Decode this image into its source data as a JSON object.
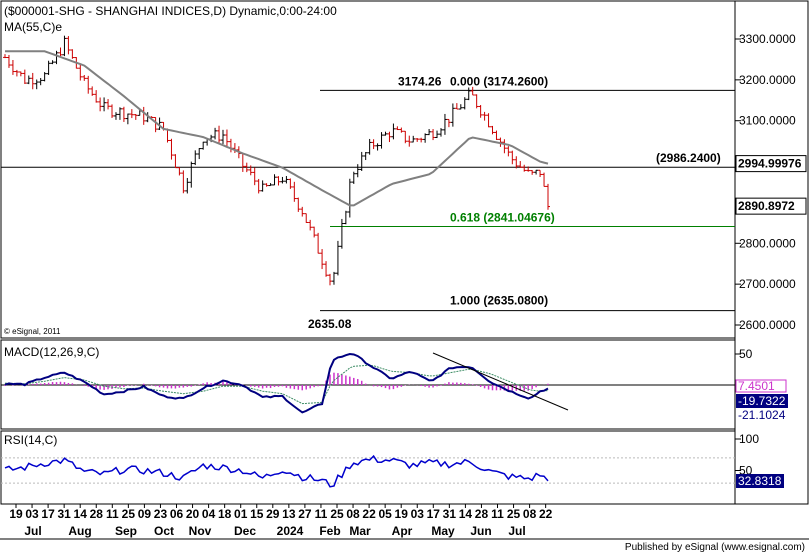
{
  "colors": {
    "up_bar": "#000000",
    "down_bar": "#cc0000",
    "ma_line": "#808080",
    "support_line": "#008000",
    "macd_line": "#000080",
    "signal_line": "#3c8c64",
    "histogram": "#cc33cc",
    "rsi_line": "#0000cc",
    "last_price_badge": "#000080",
    "price_tag_bg": "#ffffff"
  },
  "chart_data": [
    {
      "type": "line",
      "subtype": "candlestick-ohlc",
      "panel": "price",
      "title": "($000001-SHG - SHANGHAI INDICES,D) Dynamic,0:00-24:00",
      "indicator_label": "MA(55,C)e",
      "copyright": "© eSignal, 2011",
      "y_axis": {
        "ticks": [
          "3300.0000",
          "3200.0000",
          "3100.0000",
          "3000.0000",
          "2900.0000",
          "2800.0000",
          "2700.0000",
          "2600.0000"
        ],
        "range": [
          2560,
          3390
        ]
      },
      "x_axis": {
        "day_labels": [
          "19",
          "03",
          "17",
          "31",
          "14",
          "28",
          "11",
          "25",
          "09",
          "23",
          "06",
          "20",
          "04",
          "18",
          "01",
          "15",
          "29",
          "13",
          "27",
          "11",
          "25",
          "08",
          "22",
          "05",
          "19",
          "03",
          "17",
          "31",
          "14",
          "28",
          "11",
          "25",
          "08",
          "22"
        ],
        "month_labels": [
          "Jul",
          "Aug",
          "Sep",
          "Oct",
          "Nov",
          "Dec",
          "2024",
          "Feb",
          "Mar",
          "Apr",
          "May",
          "Jun",
          "Jul"
        ]
      },
      "series": [
        {
          "values_type": "close",
          "x": [
            "Jun-19",
            "Jul-03",
            "Jul-17",
            "Jul-31",
            "Aug-14",
            "Aug-28",
            "Sep-11",
            "Sep-25",
            "Oct-09",
            "Oct-23",
            "Nov-06",
            "Nov-20",
            "Dec-04",
            "Dec-18",
            "Jan-01",
            "Jan-15",
            "Jan-29",
            "Feb-05",
            "Feb-19",
            "Mar-04",
            "Mar-18",
            "Apr-01",
            "Apr-15",
            "Apr-29",
            "May-13",
            "May-27",
            "Jun-11",
            "Jun-25",
            "Jul-08",
            "Jul-22"
          ],
          "values": [
            3255,
            3200,
            3210,
            3290,
            3190,
            3130,
            3120,
            3110,
            3080,
            2940,
            3060,
            3065,
            2990,
            2930,
            2960,
            2880,
            2760,
            2700,
            2970,
            3040,
            3075,
            3050,
            3070,
            3110,
            3165,
            3090,
            3010,
            2965,
            2975,
            2890
          ]
        },
        {
          "values_type": "ma",
          "name": "MA(55,C)e",
          "x": [
            "Jul-17",
            "Aug-14",
            "Sep-11",
            "Oct-09",
            "Nov-06",
            "Dec-04",
            "Jan-01",
            "Jan-29",
            "Feb-19",
            "Mar-18",
            "Apr-15",
            "May-13",
            "Jun-11",
            "Jul-08",
            "Jul-22"
          ],
          "values": [
            3270,
            3235,
            3160,
            3080,
            3060,
            3020,
            2985,
            2930,
            2890,
            2945,
            2970,
            3060,
            3040,
            3000,
            2995
          ]
        }
      ],
      "levels": [
        {
          "label": "3174.26",
          "ratio_label": "0.000 (3174.2600)",
          "value": 3174.26
        },
        {
          "label": "(2986.2400)",
          "value": 2986.24
        },
        {
          "ratio_label": "0.618 (2841.04676)",
          "value": 2841.04676
        },
        {
          "ratio_label": "1.000 (2635.0800)",
          "value": 2635.08
        }
      ],
      "low_label": "2635.08",
      "price_tags": [
        "2994.99976",
        "2890.8972"
      ]
    },
    {
      "type": "line",
      "panel": "macd",
      "title": "MACD(12,26,9,C)",
      "y_axis": {
        "ticks": [
          "50",
          "-0"
        ],
        "range": [
          -65,
          60
        ]
      },
      "series": [
        {
          "name": "MACD",
          "values": [
            2,
            1,
            12,
            20,
            5,
            -15,
            -10,
            -3,
            -18,
            -22,
            -5,
            7,
            0,
            -20,
            -18,
            -45,
            -30,
            40,
            52,
            30,
            10,
            22,
            5,
            28,
            30,
            5,
            -10,
            -22,
            -10,
            -6
          ]
        },
        {
          "name": "Signal",
          "values": [
            3,
            2,
            6,
            12,
            8,
            -2,
            -6,
            -5,
            -10,
            -14,
            -10,
            -2,
            -2,
            -10,
            -14,
            -30,
            -28,
            5,
            30,
            32,
            22,
            20,
            14,
            20,
            26,
            18,
            5,
            -8,
            -10,
            -9
          ]
        }
      ],
      "values_tags": [
        "7.4501",
        "-19.7322",
        "-21.1024"
      ]
    },
    {
      "type": "line",
      "panel": "rsi",
      "title": "RSI(14,C)",
      "y_axis": {
        "ticks": [
          "100",
          "50",
          "0"
        ],
        "range": [
          0,
          100
        ]
      },
      "series": [
        {
          "name": "RSI",
          "values": [
            50,
            55,
            62,
            66,
            48,
            44,
            52,
            50,
            46,
            38,
            58,
            55,
            50,
            38,
            52,
            40,
            34,
            26,
            62,
            68,
            66,
            58,
            62,
            60,
            64,
            48,
            40,
            37,
            44,
            33
          ]
        }
      ],
      "value_tag": "32.8318"
    }
  ],
  "footer": {
    "credit": "Published by eSignal (www.esignal.com)"
  }
}
